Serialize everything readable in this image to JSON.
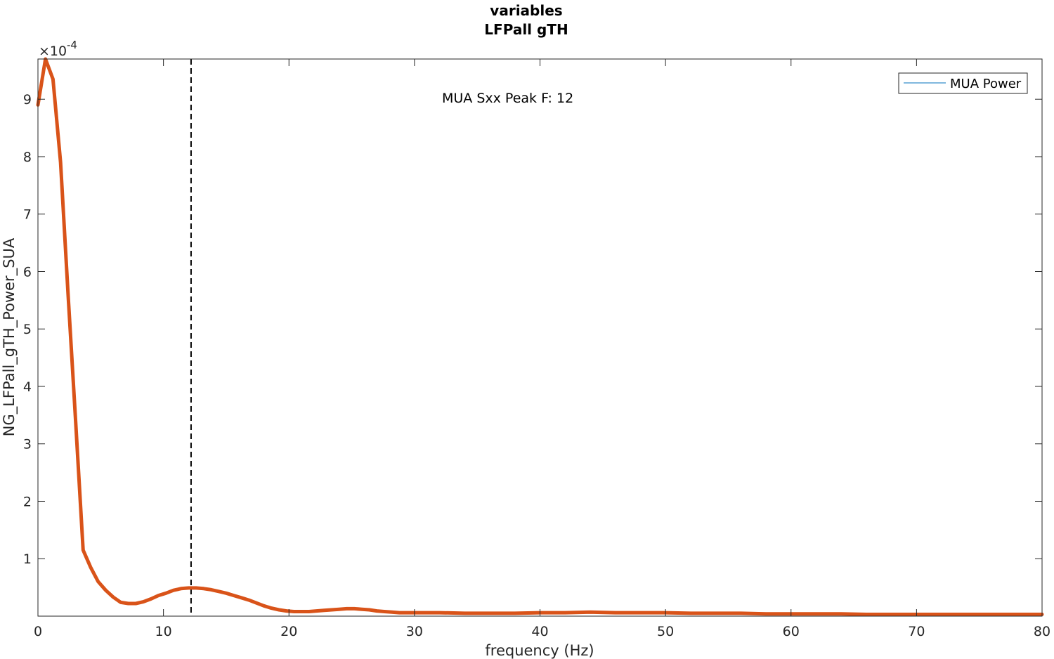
{
  "chart_data": {
    "type": "line",
    "title": [
      "variables",
      "LFPall gTH"
    ],
    "xlabel": "frequency (Hz)",
    "ylabel": "NG_LFPall_gTH_Power_SUA",
    "y_exponent_label": "×10",
    "y_exponent_power": "-4",
    "xlim": [
      0,
      80
    ],
    "ylim": [
      0,
      9.7
    ],
    "y_scale_factor": 0.0001,
    "x_ticks": [
      0,
      10,
      20,
      30,
      40,
      50,
      60,
      70,
      80
    ],
    "x_tick_labels": [
      "0",
      "10",
      "20",
      "30",
      "40",
      "50",
      "60",
      "70",
      "80"
    ],
    "y_ticks": [
      1,
      2,
      3,
      4,
      5,
      6,
      7,
      8,
      9
    ],
    "y_tick_labels": [
      "1",
      "2",
      "3",
      "4",
      "5",
      "6",
      "7",
      "8",
      "9"
    ],
    "grid": false,
    "legend_position": "top-right",
    "legend_entries": [
      {
        "label": "MUA Power",
        "color": "#0072BD"
      }
    ],
    "annotation": "MUA Sxx Peak F: 12",
    "vline": {
      "x": 12.2,
      "style": "dashed",
      "color": "#000000"
    },
    "series": [
      {
        "name": "MUA Power",
        "color": "#D95319",
        "x": [
          0,
          0.6,
          1.2,
          1.8,
          2.4,
          3.0,
          3.6,
          4.2,
          4.8,
          5.4,
          6.0,
          6.6,
          7.2,
          7.8,
          8.4,
          9.0,
          9.6,
          10.2,
          10.8,
          11.4,
          12.0,
          12.6,
          13.2,
          13.8,
          14.4,
          15.0,
          15.6,
          16.2,
          16.8,
          17.4,
          18.0,
          18.6,
          19.2,
          19.8,
          20.4,
          21.0,
          21.6,
          22.2,
          22.8,
          23.4,
          24.0,
          24.6,
          25.2,
          25.8,
          26.4,
          27.0,
          27.6,
          28.2,
          28.8,
          29.4,
          30.0,
          32,
          34,
          36,
          38,
          40,
          42,
          44,
          46,
          48,
          50,
          52,
          54,
          56,
          58,
          60,
          62,
          64,
          66,
          68,
          70,
          72,
          74,
          76,
          78,
          80
        ],
        "y": [
          8.9,
          9.7,
          9.35,
          7.9,
          5.6,
          3.4,
          1.15,
          0.85,
          0.6,
          0.45,
          0.33,
          0.24,
          0.22,
          0.22,
          0.25,
          0.3,
          0.36,
          0.4,
          0.45,
          0.48,
          0.49,
          0.49,
          0.48,
          0.46,
          0.43,
          0.4,
          0.36,
          0.32,
          0.28,
          0.23,
          0.18,
          0.14,
          0.11,
          0.09,
          0.08,
          0.08,
          0.08,
          0.09,
          0.1,
          0.11,
          0.12,
          0.13,
          0.13,
          0.12,
          0.11,
          0.09,
          0.08,
          0.07,
          0.06,
          0.06,
          0.06,
          0.06,
          0.05,
          0.05,
          0.05,
          0.06,
          0.06,
          0.07,
          0.06,
          0.06,
          0.06,
          0.05,
          0.05,
          0.05,
          0.04,
          0.04,
          0.04,
          0.04,
          0.03,
          0.03,
          0.03,
          0.03,
          0.03,
          0.03,
          0.03,
          0.03
        ]
      }
    ]
  }
}
